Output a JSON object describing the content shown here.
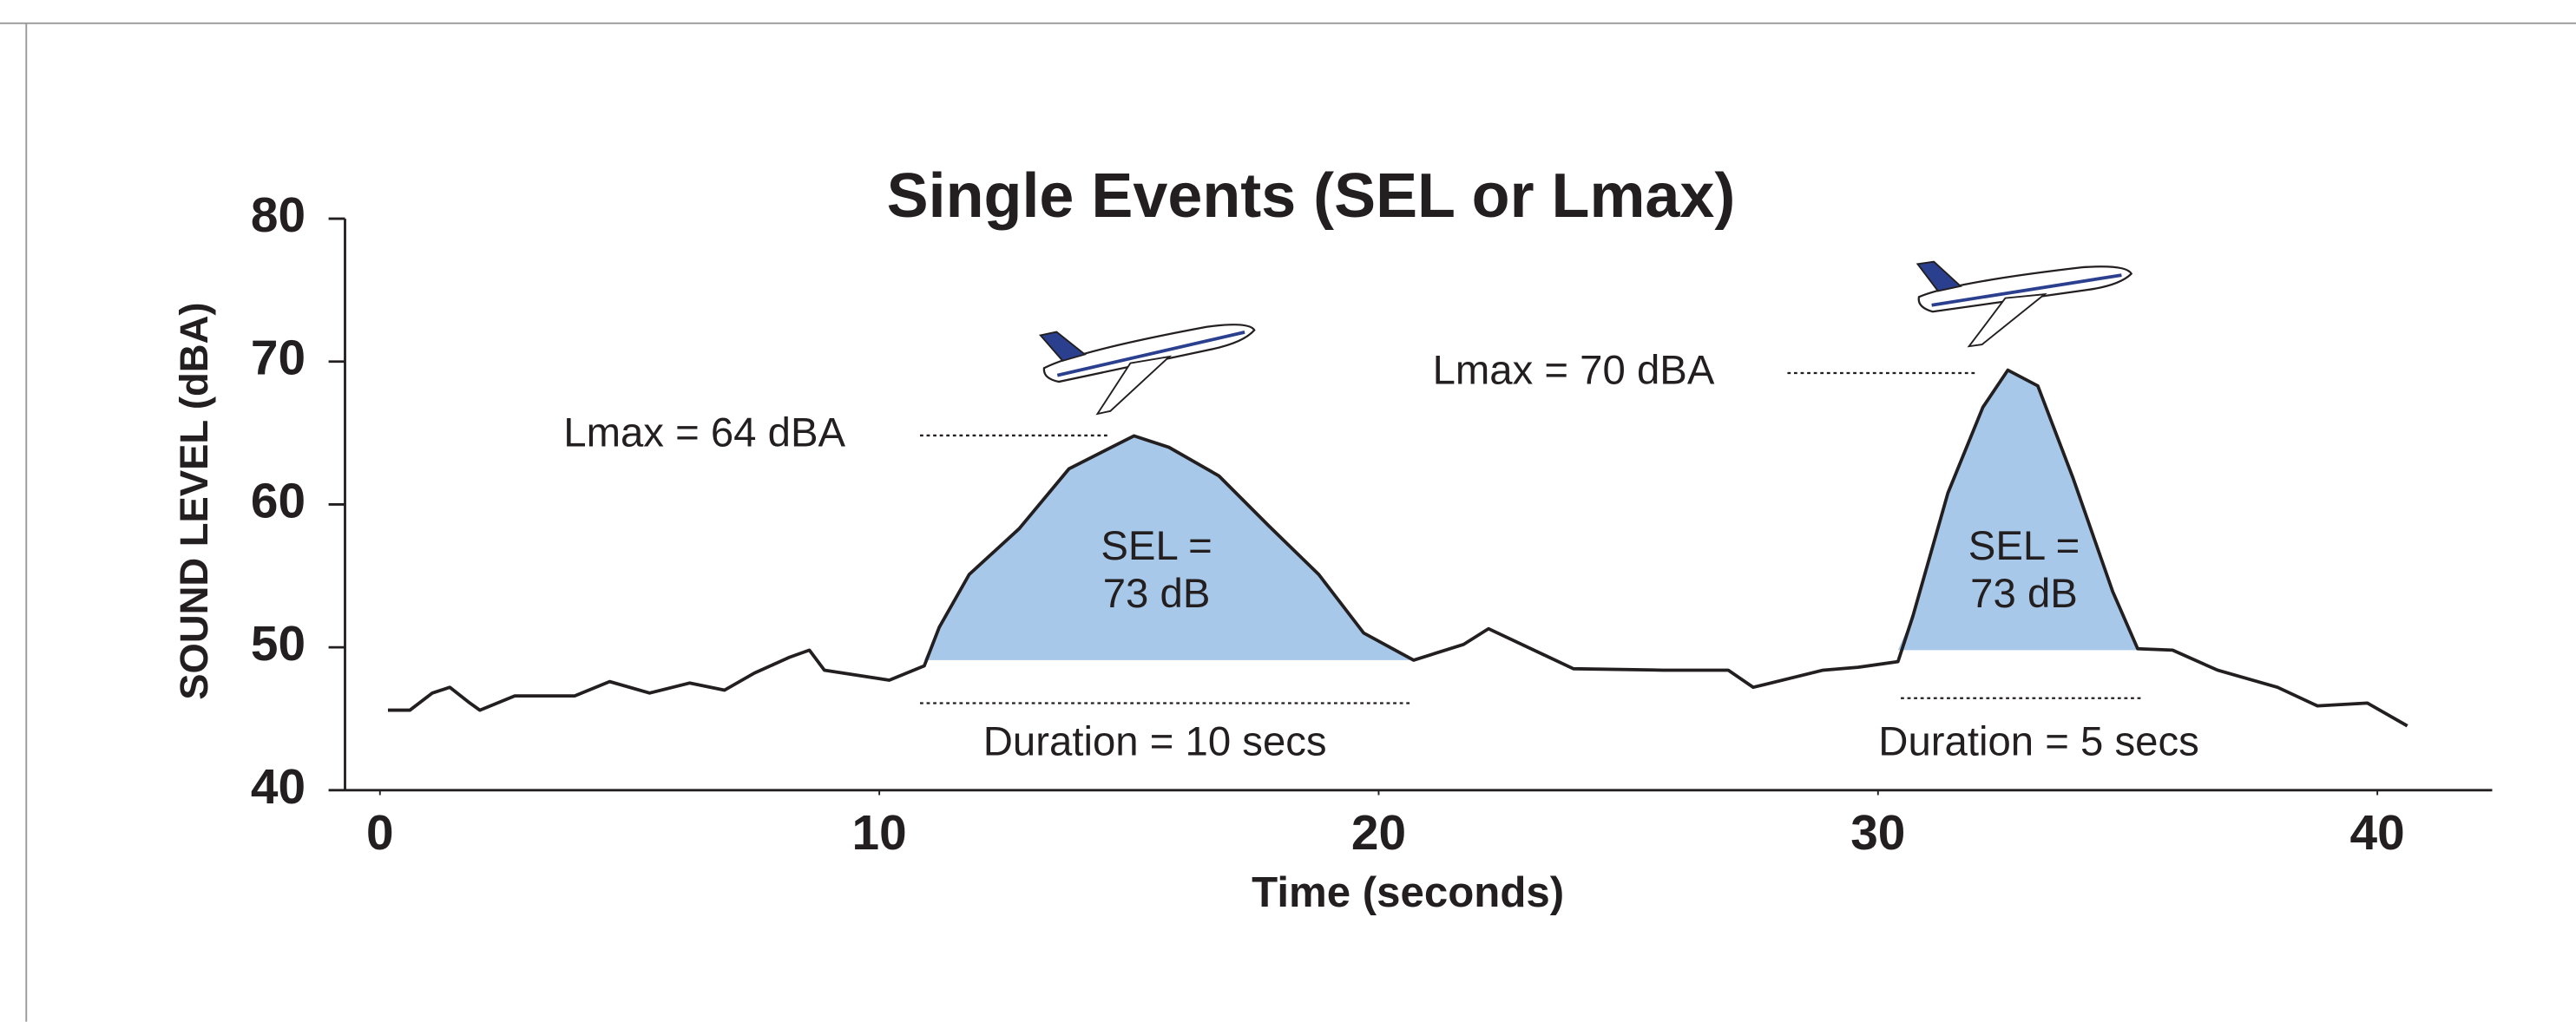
{
  "chart_data": {
    "type": "line",
    "title": "Single Events (SEL or Lmax)",
    "xlabel": "Time (seconds)",
    "ylabel": "SOUND LEVEL (dBA)",
    "xlim": [
      -0.7,
      42.3
    ],
    "xticks": [
      0,
      10,
      20,
      30,
      40
    ],
    "ylim": [
      40,
      80
    ],
    "yticks": [
      40,
      50,
      60,
      70,
      80
    ],
    "series": [
      {
        "color": "#231f20",
        "x": [
          0.16,
          0.6,
          1.05,
          1.4,
          1.8,
          2.0,
          2.7,
          3.9,
          4.6,
          5.4,
          6.2,
          6.9,
          7.5,
          8.2,
          8.6,
          8.9,
          10.2,
          10.9,
          11.2,
          11.8,
          12.8,
          13.8,
          15.1,
          15.8,
          16.8,
          17.8,
          18.8,
          19.7,
          20.7,
          21.7,
          22.2,
          23.9,
          25.7,
          27.0,
          27.5,
          28.9,
          29.6,
          30.4,
          30.7,
          31.4,
          32.1,
          32.6,
          33.2,
          33.9,
          34.7,
          35.2,
          35.9,
          36.8,
          38.0,
          38.8,
          39.8,
          40.6
        ],
        "values": [
          45.6,
          45.6,
          46.8,
          47.2,
          46.1,
          45.6,
          46.6,
          46.6,
          47.6,
          46.8,
          47.5,
          47.0,
          48.2,
          49.3,
          49.8,
          48.4,
          47.7,
          48.7,
          51.4,
          55.1,
          58.3,
          62.5,
          64.8,
          64.0,
          62.0,
          58.5,
          55.1,
          51.0,
          49.1,
          50.2,
          51.3,
          48.5,
          48.4,
          48.4,
          47.2,
          48.4,
          48.6,
          49.0,
          52.2,
          60.8,
          66.8,
          69.4,
          68.3,
          61.9,
          53.9,
          49.9,
          49.8,
          48.4,
          47.2,
          45.9,
          46.1,
          44.5
        ]
      }
    ],
    "fill_color": "#a7c8e8",
    "annotations": [
      "Lmax = 64 dBA",
      "Lmax = 70 dBA",
      "SEL =",
      "73 dB",
      "SEL =",
      "73 dB",
      "Duration = 10 secs",
      "Duration = 5 secs"
    ]
  }
}
